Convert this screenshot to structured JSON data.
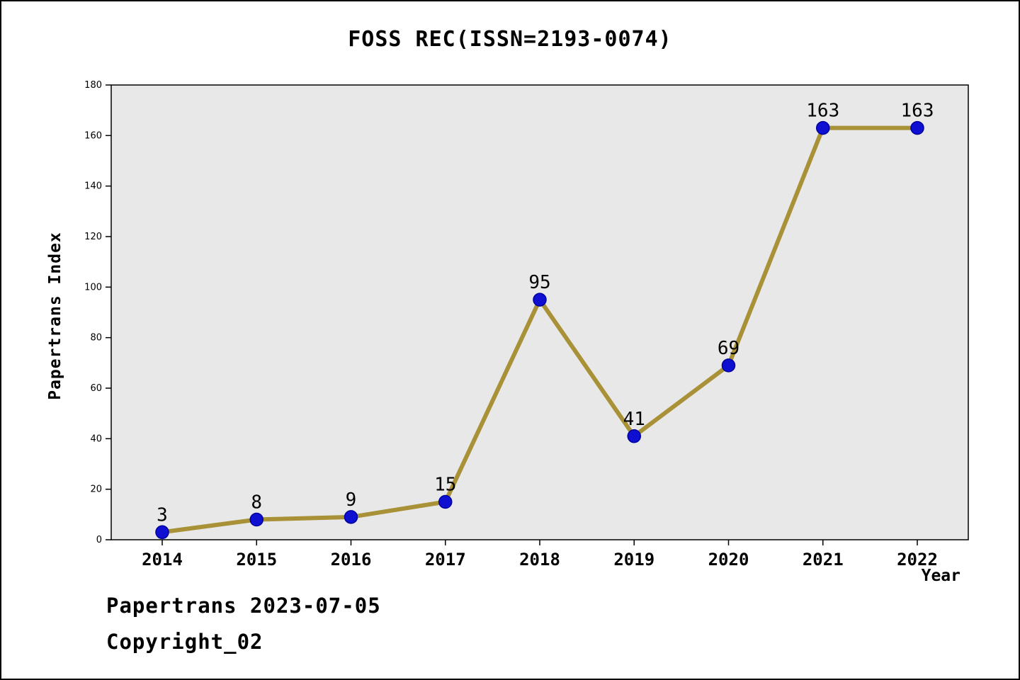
{
  "chart_data": {
    "type": "line",
    "title": "FOSS REC(ISSN=2193-0074)",
    "xlabel": "Year",
    "ylabel": "Papertrans Index",
    "categories": [
      "2014",
      "2015",
      "2016",
      "2017",
      "2018",
      "2019",
      "2020",
      "2021",
      "2022"
    ],
    "values": [
      3,
      8,
      9,
      15,
      95,
      41,
      69,
      163,
      163
    ],
    "ylim": [
      0,
      180
    ],
    "ytick_step": 20,
    "grid": false,
    "legend": false,
    "line_color": "#a89136",
    "marker_color": "#0f0fd2",
    "marker_edge_color": "#0000a0",
    "plot_bg": "#e8e8e8",
    "axis_color": "#000000"
  },
  "footer": {
    "line1": "Papertrans 2023-07-05",
    "line2": "Copyright_02"
  }
}
